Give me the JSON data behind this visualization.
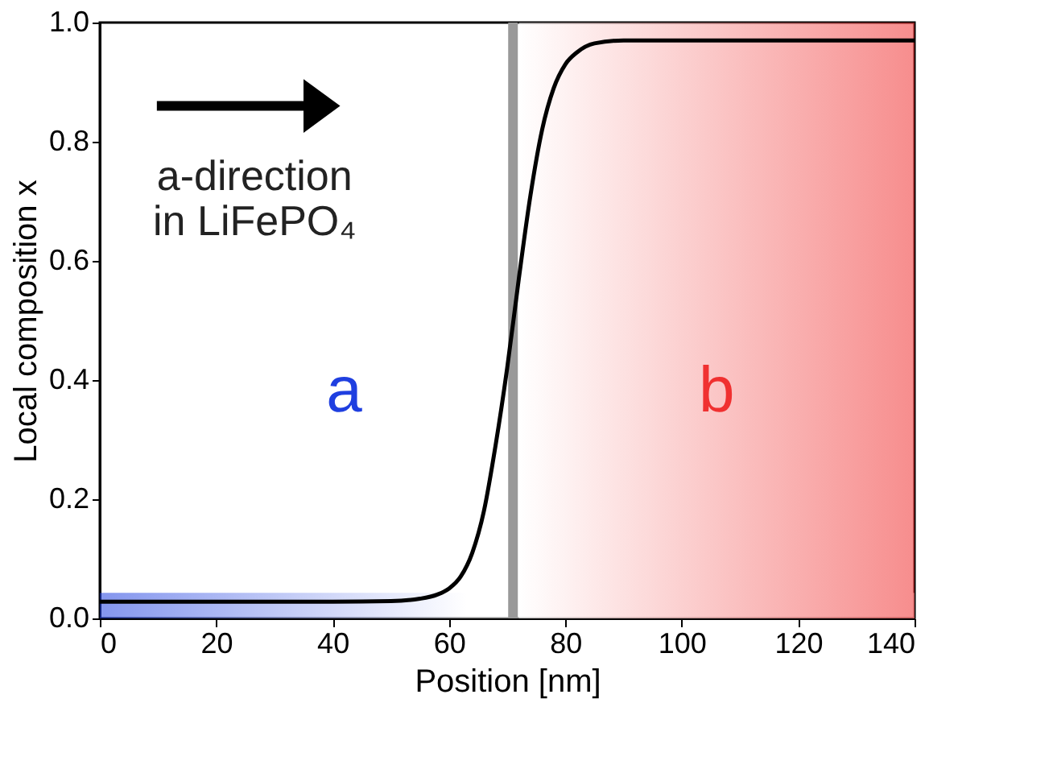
{
  "chart_data": {
    "type": "line",
    "xlabel": "Position [nm]",
    "ylabel": "Local composition x",
    "xlim": [
      0,
      140
    ],
    "xticks": [
      0,
      20,
      40,
      60,
      80,
      100,
      120,
      140
    ],
    "ylim": [
      0,
      1.0
    ],
    "yticks": [
      {
        "value": 0,
        "label": "0.0"
      },
      0.2,
      0.4,
      0.6,
      0.8,
      {
        "value": 1,
        "label": "1.0"
      }
    ],
    "grid": false,
    "series": [
      {
        "color": "#000000",
        "x": [
          0,
          20,
          40,
          50,
          55,
          58,
          60,
          62,
          64,
          66,
          68,
          70,
          72,
          74,
          76,
          78,
          80,
          82,
          85,
          90,
          100,
          120,
          140
        ],
        "values": [
          0.028,
          0.028,
          0.028,
          0.029,
          0.033,
          0.04,
          0.05,
          0.07,
          0.11,
          0.18,
          0.29,
          0.42,
          0.57,
          0.71,
          0.82,
          0.89,
          0.93,
          0.95,
          0.965,
          0.97,
          0.97,
          0.97,
          0.97
        ]
      }
    ],
    "ref_lines": [
      {
        "axis": "x",
        "value": 71,
        "color": "#999999"
      }
    ],
    "bands": [
      {
        "axis": "y",
        "from": 0,
        "to": 0.043,
        "label": "a",
        "color": "#1f3fe0"
      },
      {
        "axis": "x",
        "from": 72,
        "to": 140,
        "label": "b",
        "color": "#f03030"
      }
    ],
    "annotations": [
      "a-direction",
      "in LiFePO₄"
    ]
  }
}
